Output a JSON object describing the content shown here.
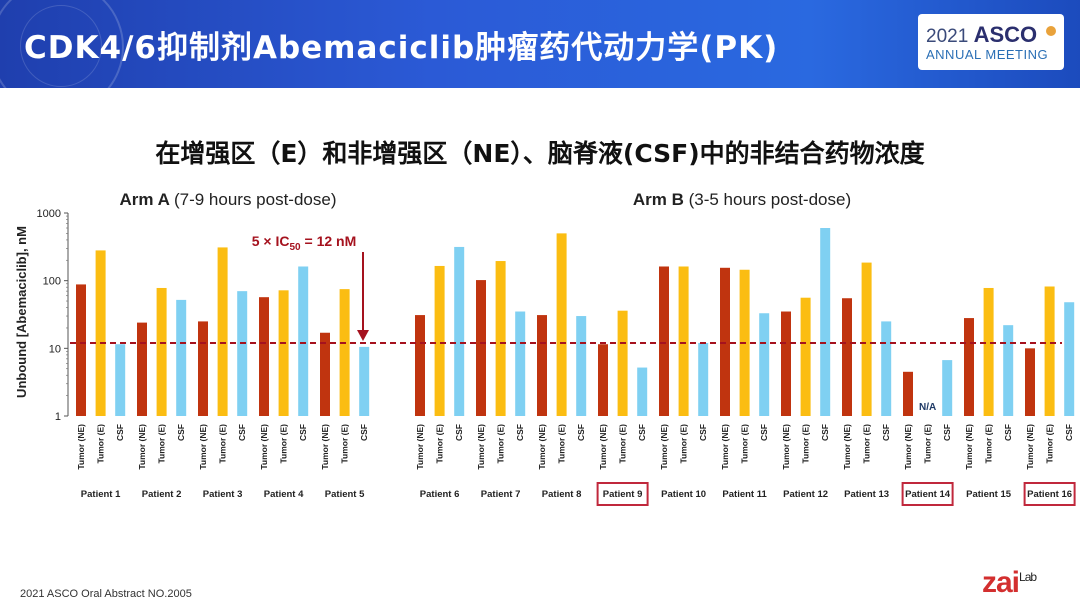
{
  "header": {
    "title": "CDK4/6抑制剂Abemaciclib肿瘤药代动力学(PK)",
    "asco_year": "2021",
    "asco_brand": "ASCO",
    "asco_sub": "ANNUAL MEETING"
  },
  "subtitle": "在增强区（E）和非增强区（NE）、脑脊液(CSF)中的非结合药物浓度",
  "footer": {
    "source": "2021 ASCO Oral Abstract NO.2005",
    "logo_text_1": "zai",
    "logo_text_2": "Lab"
  },
  "colors": {
    "tumor_ne": "#c0340f",
    "tumor_e": "#fbbd12",
    "csf": "#7fd0f2",
    "threshold": "#a5121e",
    "highlight": "#c0283c"
  },
  "chart_data": {
    "type": "bar",
    "ylabel": "Unbound [Abemaciclib], nM",
    "yscale": "log",
    "ylim": [
      1,
      1000
    ],
    "yticks": [
      "1",
      "10",
      "100",
      "1000"
    ],
    "bar_labels": [
      "Tumor (NE)",
      "Tumor (E)",
      "CSF"
    ],
    "threshold": {
      "value": 12,
      "label": "5 × IC50 = 12 nM"
    },
    "arms": [
      {
        "title_bold": "Arm A",
        "title_rest": "(7-9 hours post-dose)",
        "patients": [
          {
            "name": "Patient 1",
            "values": [
              88,
              280,
              11.5
            ],
            "highlight": false
          },
          {
            "name": "Patient 2",
            "values": [
              24,
              78,
              52
            ],
            "highlight": false
          },
          {
            "name": "Patient 3",
            "values": [
              25,
              310,
              70
            ],
            "highlight": false
          },
          {
            "name": "Patient 4",
            "values": [
              57,
              72,
              162
            ],
            "highlight": false
          },
          {
            "name": "Patient 5",
            "values": [
              17,
              75,
              10.5
            ],
            "highlight": false
          }
        ]
      },
      {
        "title_bold": "Arm B",
        "title_rest": "(3-5 hours post-dose)",
        "patients": [
          {
            "name": "Patient 6",
            "values": [
              31,
              165,
              315
            ],
            "highlight": false
          },
          {
            "name": "Patient 7",
            "values": [
              102,
              195,
              35
            ],
            "highlight": false
          },
          {
            "name": "Patient 8",
            "values": [
              31,
              500,
              30
            ],
            "highlight": false
          },
          {
            "name": "Patient 9",
            "values": [
              11.5,
              36,
              5.2
            ],
            "highlight": true
          },
          {
            "name": "Patient 10",
            "values": [
              162,
              162,
              12
            ],
            "highlight": false
          },
          {
            "name": "Patient 11",
            "values": [
              155,
              145,
              33
            ],
            "highlight": false
          },
          {
            "name": "Patient 12",
            "values": [
              35,
              56,
              600
            ],
            "highlight": false
          },
          {
            "name": "Patient 13",
            "values": [
              55,
              185,
              25
            ],
            "highlight": false
          },
          {
            "name": "Patient 14",
            "values": [
              4.5,
              null,
              6.7
            ],
            "highlight": true,
            "note": "N/A"
          },
          {
            "name": "Patient 15",
            "values": [
              28,
              78,
              22
            ],
            "highlight": false
          },
          {
            "name": "Patient 16",
            "values": [
              10,
              82,
              48
            ],
            "highlight": true
          }
        ]
      }
    ]
  }
}
